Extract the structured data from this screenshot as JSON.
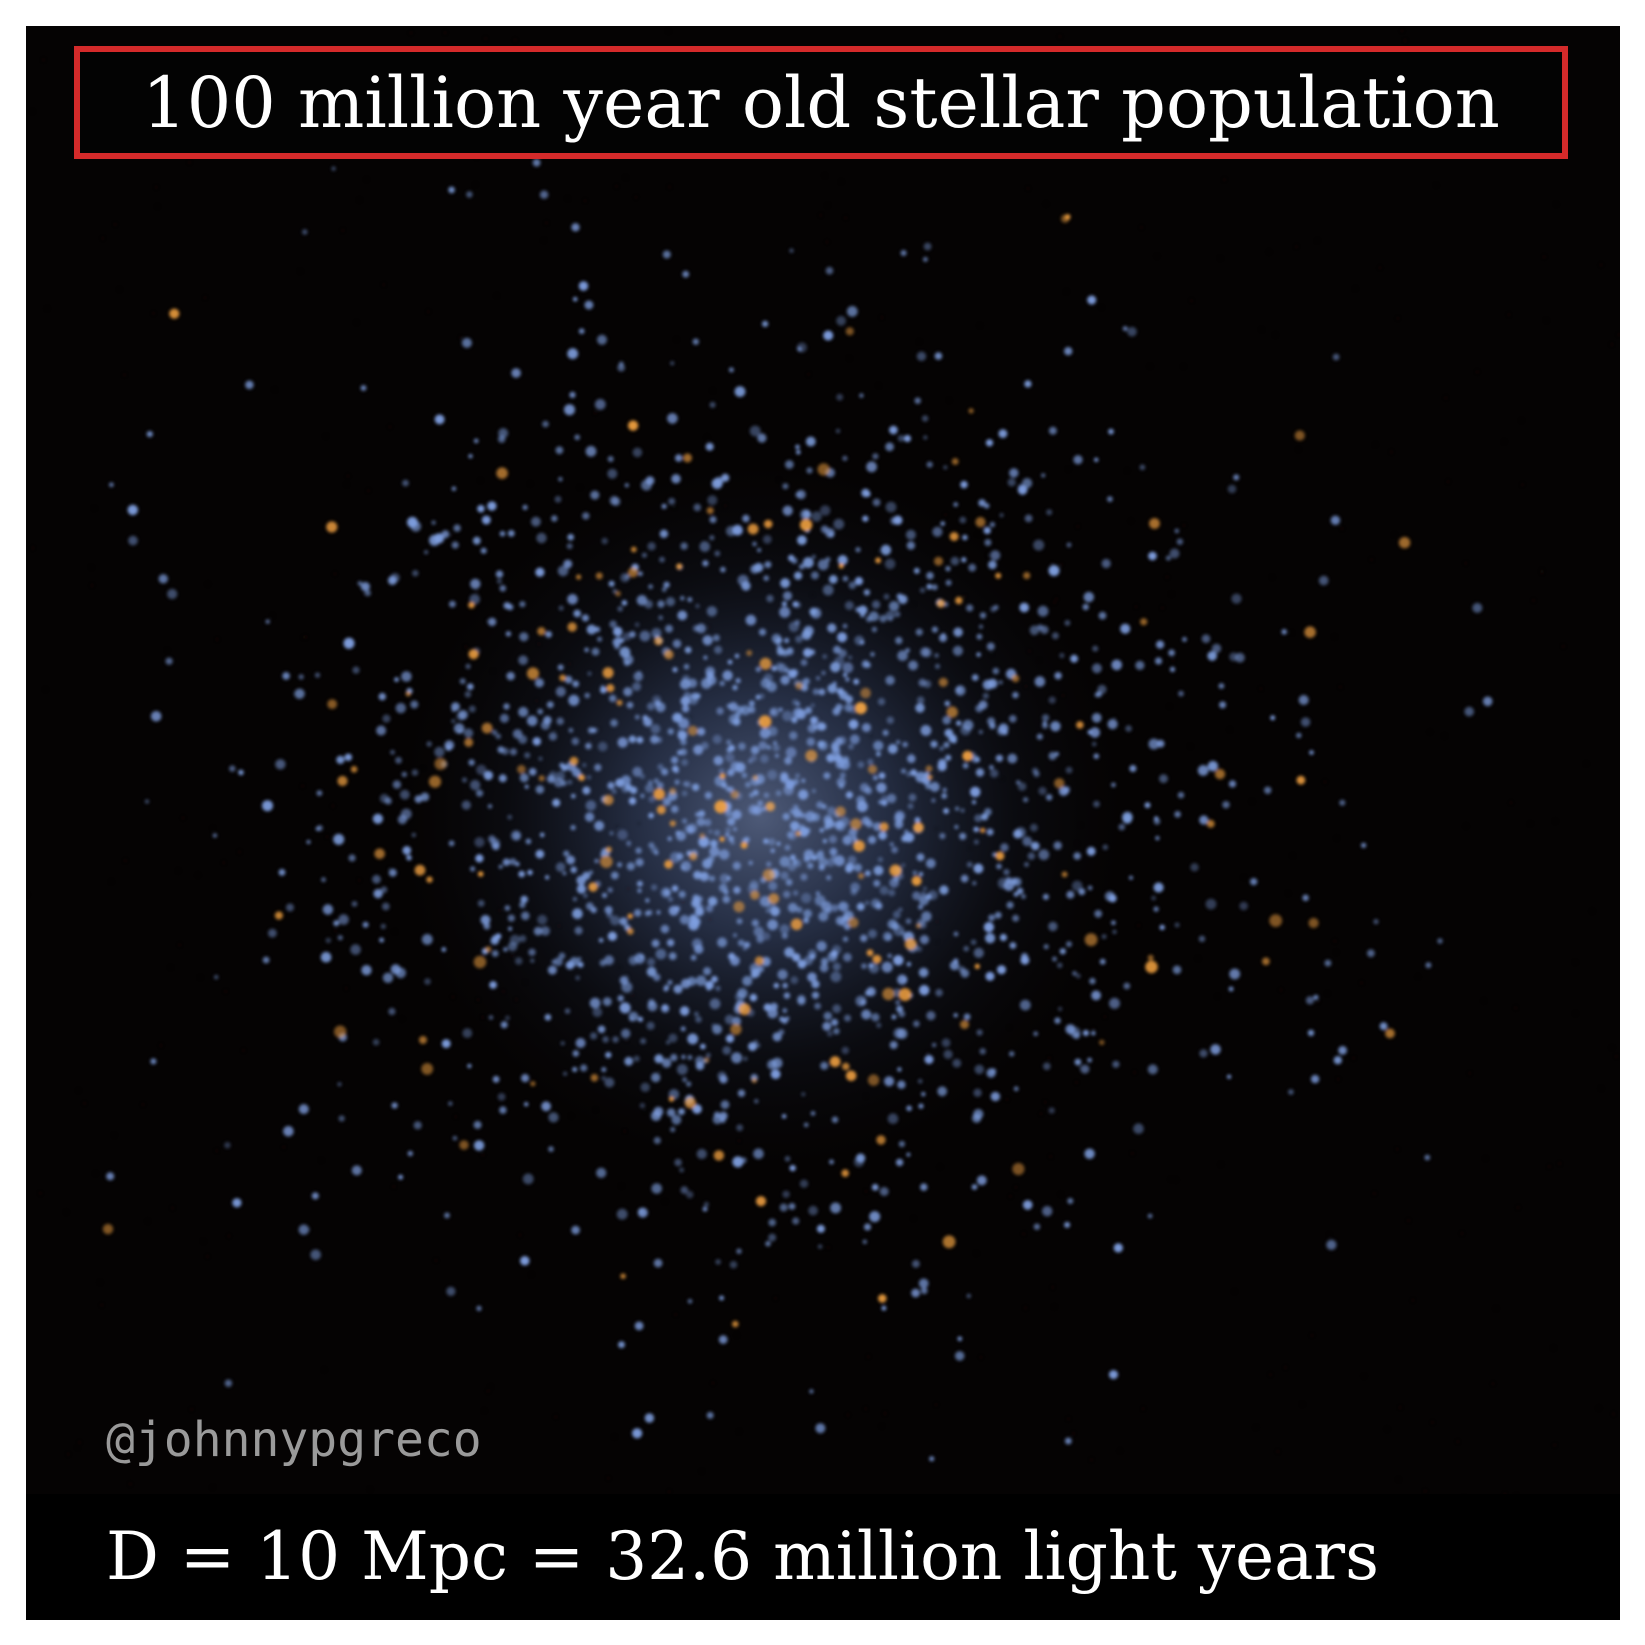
{
  "title": "100 million year old stellar population",
  "credit": "@johnnypgreco",
  "distance_label": "D = 10 Mpc = 32.6 million light years",
  "colors": {
    "background": "#050303",
    "title_border": "#d42a2a",
    "title_text": "#ffffff",
    "credit_text": "#9a9a9a",
    "young_stars": "#7f9fe0",
    "evolved_stars": "#f0a040"
  }
}
